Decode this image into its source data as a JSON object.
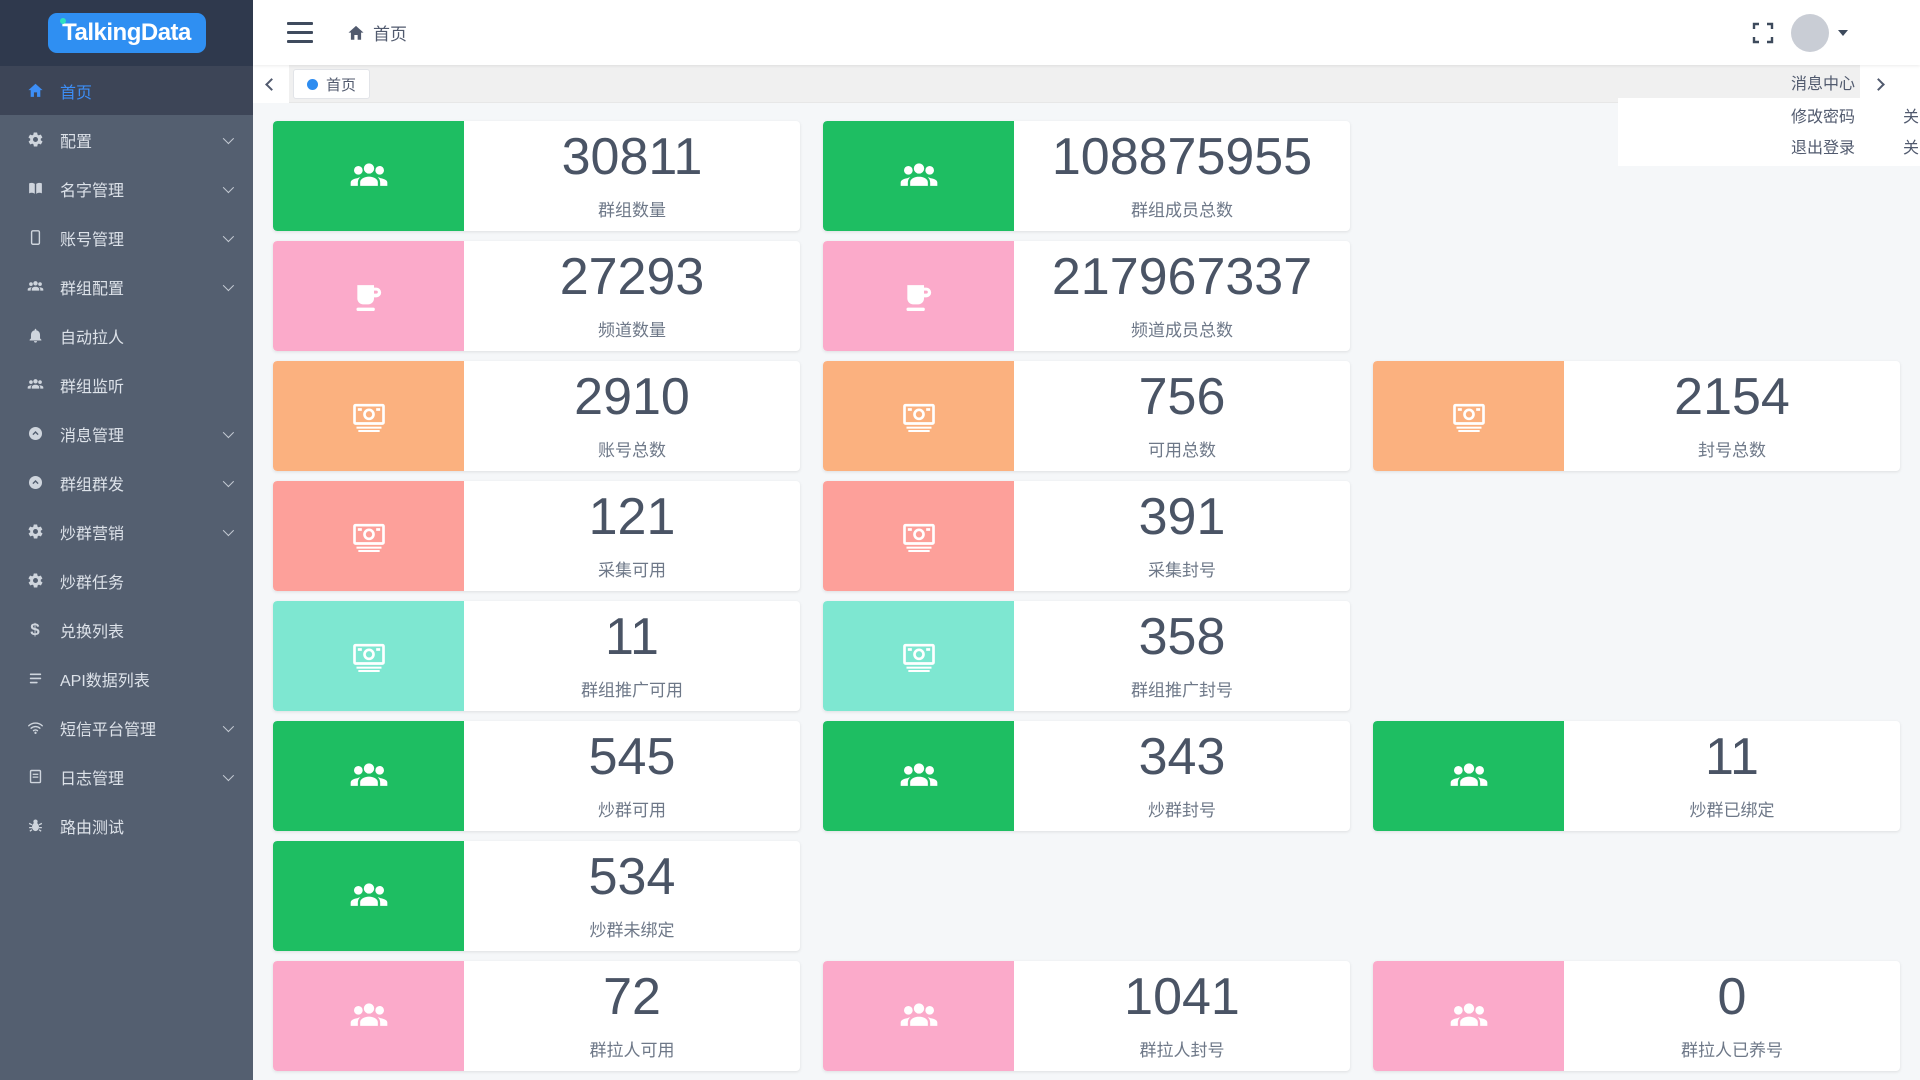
{
  "logo": "TalkingData",
  "header": {
    "breadcrumb_home": "首页",
    "icons": {
      "toggle": "hamburger-icon",
      "breadcrumb": "home-icon",
      "right": [
        "fullscreen-icon",
        "avatar",
        "caret-down-icon"
      ]
    }
  },
  "tags_bar": {
    "active_tab": "首页",
    "scroll_icons": [
      "chevron-left-icon",
      "chevron-right-icon"
    ],
    "active_dot_color": "#2d8cf0"
  },
  "user_menu": {
    "items": [
      {
        "label": "消息中心"
      },
      {
        "label": "修改密码"
      },
      {
        "label": "退出登录"
      }
    ]
  },
  "edge_menu": {
    "items": [
      {
        "label": "关"
      },
      {
        "label": "关"
      }
    ]
  },
  "sidebar": {
    "items": [
      {
        "label": "首页",
        "icon": "home",
        "active": true,
        "chevron": false
      },
      {
        "label": "配置",
        "icon": "gear",
        "active": false,
        "chevron": true
      },
      {
        "label": "名字管理",
        "icon": "book",
        "active": false,
        "chevron": true
      },
      {
        "label": "账号管理",
        "icon": "mobile",
        "active": false,
        "chevron": true
      },
      {
        "label": "群组配置",
        "icon": "users",
        "active": false,
        "chevron": true
      },
      {
        "label": "自动拉人",
        "icon": "bell",
        "active": false,
        "chevron": false
      },
      {
        "label": "群组监听",
        "icon": "users",
        "active": false,
        "chevron": false
      },
      {
        "label": "消息管理",
        "icon": "message",
        "active": false,
        "chevron": true
      },
      {
        "label": "群组群发",
        "icon": "message",
        "active": false,
        "chevron": true
      },
      {
        "label": "炒群营销",
        "icon": "gear",
        "active": false,
        "chevron": true
      },
      {
        "label": "炒群任务",
        "icon": "gear",
        "active": false,
        "chevron": false
      },
      {
        "label": "兑换列表",
        "icon": "dollar",
        "active": false,
        "chevron": false
      },
      {
        "label": "API数据列表",
        "icon": "list",
        "active": false,
        "chevron": false
      },
      {
        "label": "短信平台管理",
        "icon": "wifi",
        "active": false,
        "chevron": true
      },
      {
        "label": "日志管理",
        "icon": "log",
        "active": false,
        "chevron": true
      },
      {
        "label": "路由测试",
        "icon": "bug",
        "active": false,
        "chevron": false
      }
    ]
  },
  "colors": {
    "green": "#1ebe62",
    "pink": "#fbaaca",
    "orange": "#fbb17f",
    "salmon": "#fda09a",
    "teal": "#7ee7d1",
    "accent_blue": "#2d8cf0"
  },
  "stats": {
    "rows": [
      [
        {
          "value": "30811",
          "label": "群组数量",
          "color": "green",
          "icon": "users"
        },
        {
          "value": "108875955",
          "label": "群组成员总数",
          "color": "green",
          "icon": "users"
        }
      ],
      [
        {
          "value": "27293",
          "label": "频道数量",
          "color": "pink",
          "icon": "cup"
        },
        {
          "value": "217967337",
          "label": "频道成员总数",
          "color": "pink",
          "icon": "cup"
        }
      ],
      [
        {
          "value": "2910",
          "label": "账号总数",
          "color": "orange",
          "icon": "money"
        },
        {
          "value": "756",
          "label": "可用总数",
          "color": "orange",
          "icon": "money"
        },
        {
          "value": "2154",
          "label": "封号总数",
          "color": "orange",
          "icon": "money"
        }
      ],
      [
        {
          "value": "121",
          "label": "采集可用",
          "color": "salmon",
          "icon": "money"
        },
        {
          "value": "391",
          "label": "采集封号",
          "color": "salmon",
          "icon": "money"
        }
      ],
      [
        {
          "value": "11",
          "label": "群组推广可用",
          "color": "teal",
          "icon": "money"
        },
        {
          "value": "358",
          "label": "群组推广封号",
          "color": "teal",
          "icon": "money"
        }
      ],
      [
        {
          "value": "545",
          "label": "炒群可用",
          "color": "green",
          "icon": "users"
        },
        {
          "value": "343",
          "label": "炒群封号",
          "color": "green",
          "icon": "users"
        },
        {
          "value": "11",
          "label": "炒群已绑定",
          "color": "green",
          "icon": "users"
        }
      ],
      [
        {
          "value": "534",
          "label": "炒群未绑定",
          "color": "green",
          "icon": "users"
        }
      ],
      [
        {
          "value": "72",
          "label": "群拉人可用",
          "color": "pink",
          "icon": "users"
        },
        {
          "value": "1041",
          "label": "群拉人封号",
          "color": "pink",
          "icon": "users"
        },
        {
          "value": "0",
          "label": "群拉人已养号",
          "color": "pink",
          "icon": "users"
        }
      ]
    ]
  }
}
